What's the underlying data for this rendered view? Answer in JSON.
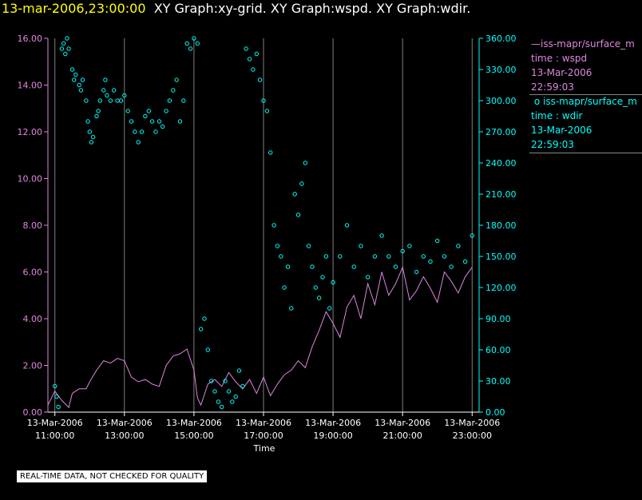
{
  "header": {
    "timestamp": "13-mar-2006,23:00:00",
    "graphs": "XY Graph:xy-grid.  XY Graph:wspd.  XY Graph:wdir."
  },
  "footer": {
    "quality_note": "REAL-TIME DATA, NOT CHECKED FOR QUALITY"
  },
  "legend": [
    {
      "label": "iss-mapr/surface_m",
      "line2": "time : wspd",
      "date": "13-Mar-2006",
      "time": "22:59:03",
      "color": "#dd88dd"
    },
    {
      "label": "iss-mapr/surface_m",
      "line2": "time : wdir",
      "date": "13-Mar-2006",
      "time": "22:59:03",
      "color": "#00ffff"
    }
  ],
  "chart_data": {
    "type": "line",
    "xlabel": "Time",
    "x_unit": "hours since 13-Mar-2006 00:00",
    "xlim": [
      10.8,
      23.2
    ],
    "x_ticks": [
      {
        "at": 11,
        "date": "13-Mar-2006",
        "time": "11:00:00"
      },
      {
        "at": 13,
        "date": "13-Mar-2006",
        "time": "13:00:00"
      },
      {
        "at": 15,
        "date": "13-Mar-2006",
        "time": "15:00:00"
      },
      {
        "at": 17,
        "date": "13-Mar-2006",
        "time": "17:00:00"
      },
      {
        "at": 19,
        "date": "13-Mar-2006",
        "time": "19:00:00"
      },
      {
        "at": 21,
        "date": "13-Mar-2006",
        "time": "21:00:00"
      },
      {
        "at": 23,
        "date": "13-Mar-2006",
        "time": "23:00:00"
      }
    ],
    "y_left": {
      "name": "wspd",
      "range": [
        0,
        16
      ],
      "color": "#dd88dd",
      "ticks": [
        "0.00",
        "2.00",
        "4.00",
        "6.00",
        "8.00",
        "10.00",
        "12.00",
        "14.00",
        "16.00"
      ]
    },
    "y_right": {
      "name": "wdir",
      "range": [
        0,
        360
      ],
      "color": "#00ffff",
      "ticks": [
        "0.00",
        "30.00",
        "60.00",
        "90.00",
        "120.00",
        "150.00",
        "180.00",
        "210.00",
        "240.00",
        "270.00",
        "300.00",
        "330.00",
        "360.00"
      ]
    },
    "grid": {
      "vertical": true,
      "horizontal": false
    },
    "series": [
      {
        "name": "wspd",
        "style": "line",
        "axis": "left",
        "color": "#dd88dd",
        "x": [
          10.8,
          11.0,
          11.2,
          11.4,
          11.5,
          11.7,
          11.9,
          12.0,
          12.2,
          12.4,
          12.6,
          12.8,
          13.0,
          13.2,
          13.4,
          13.6,
          13.8,
          14.0,
          14.2,
          14.4,
          14.6,
          14.8,
          15.0,
          15.1,
          15.2,
          15.4,
          15.6,
          15.8,
          16.0,
          16.2,
          16.4,
          16.6,
          16.8,
          17.0,
          17.2,
          17.4,
          17.6,
          17.8,
          18.0,
          18.2,
          18.4,
          18.6,
          18.8,
          19.0,
          19.2,
          19.4,
          19.6,
          19.8,
          20.0,
          20.2,
          20.4,
          20.6,
          20.8,
          21.0,
          21.2,
          21.4,
          21.6,
          21.8,
          22.0,
          22.2,
          22.4,
          22.6,
          22.8,
          23.0
        ],
        "y": [
          0.3,
          0.9,
          0.5,
          0.2,
          0.8,
          1.0,
          1.0,
          1.3,
          1.8,
          2.2,
          2.1,
          2.3,
          2.2,
          1.5,
          1.3,
          1.4,
          1.2,
          1.1,
          2.0,
          2.4,
          2.5,
          2.7,
          1.8,
          0.6,
          0.3,
          1.2,
          1.4,
          1.1,
          1.7,
          1.3,
          1.0,
          1.4,
          0.8,
          1.5,
          0.7,
          1.2,
          1.6,
          1.8,
          2.2,
          1.9,
          2.8,
          3.5,
          4.3,
          3.8,
          3.2,
          4.5,
          5.0,
          4.0,
          5.5,
          4.6,
          6.0,
          5.0,
          5.5,
          6.2,
          4.8,
          5.2,
          5.8,
          5.3,
          4.7,
          6.0,
          5.6,
          5.1,
          5.8,
          6.2
        ]
      },
      {
        "name": "wdir",
        "style": "circles",
        "axis": "right",
        "color": "#00ffff",
        "x": [
          11.0,
          11.05,
          11.1,
          11.2,
          11.25,
          11.3,
          11.35,
          11.4,
          11.5,
          11.55,
          11.6,
          11.7,
          11.75,
          11.8,
          11.9,
          11.95,
          12.0,
          12.05,
          12.1,
          12.2,
          12.25,
          12.3,
          12.4,
          12.45,
          12.5,
          12.6,
          12.7,
          12.8,
          12.9,
          13.0,
          13.1,
          13.2,
          13.3,
          13.4,
          13.5,
          13.6,
          13.7,
          13.8,
          13.9,
          14.0,
          14.1,
          14.2,
          14.3,
          14.4,
          14.5,
          14.6,
          14.7,
          14.8,
          14.9,
          15.0,
          15.1,
          15.2,
          15.3,
          15.4,
          15.5,
          15.6,
          15.7,
          15.8,
          15.9,
          16.0,
          16.1,
          16.2,
          16.3,
          16.4,
          16.5,
          16.6,
          16.7,
          16.8,
          16.9,
          17.0,
          17.1,
          17.2,
          17.3,
          17.4,
          17.5,
          17.6,
          17.7,
          17.8,
          17.9,
          18.0,
          18.1,
          18.2,
          18.3,
          18.4,
          18.5,
          18.6,
          18.7,
          18.8,
          18.9,
          19.0,
          19.2,
          19.4,
          19.6,
          19.8,
          20.0,
          20.2,
          20.4,
          20.6,
          20.8,
          21.0,
          21.2,
          21.4,
          21.6,
          21.8,
          22.0,
          22.2,
          22.4,
          22.6,
          22.8,
          23.0
        ],
        "y": [
          25,
          15,
          5,
          350,
          355,
          345,
          360,
          350,
          330,
          320,
          325,
          315,
          310,
          320,
          300,
          280,
          270,
          260,
          265,
          285,
          290,
          300,
          310,
          320,
          305,
          300,
          310,
          300,
          300,
          305,
          290,
          280,
          270,
          260,
          270,
          285,
          290,
          280,
          270,
          280,
          275,
          290,
          300,
          310,
          320,
          280,
          300,
          355,
          350,
          360,
          355,
          80,
          90,
          60,
          30,
          20,
          10,
          5,
          30,
          20,
          10,
          15,
          40,
          25,
          350,
          340,
          330,
          345,
          320,
          300,
          290,
          250,
          180,
          160,
          150,
          120,
          140,
          100,
          210,
          190,
          220,
          240,
          160,
          140,
          120,
          110,
          130,
          150,
          100,
          125,
          150,
          180,
          140,
          160,
          130,
          150,
          170,
          150,
          140,
          155,
          160,
          135,
          150,
          145,
          165,
          150,
          140,
          160,
          145,
          170
        ]
      }
    ]
  }
}
